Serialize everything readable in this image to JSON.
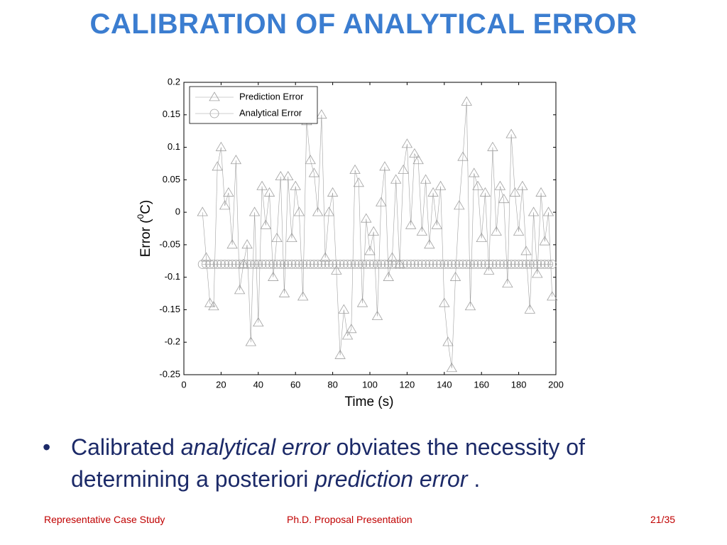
{
  "title": "CALIBRATION OF ANALYTICAL ERROR",
  "bullet": [
    "Calibrated",
    "analytical error",
    "obviates the necessity of determining a posteriori",
    "prediction error",
    "."
  ],
  "footer": {
    "left": "Representative Case Study",
    "center": "Ph.D. Proposal Presentation",
    "right": "21/35"
  },
  "chart_data": {
    "type": "line",
    "xlabel": "Time (s)",
    "ylabel": [
      "Error (",
      "0",
      "C)"
    ],
    "xlim": [
      0,
      200
    ],
    "xticks": [
      0,
      20,
      40,
      60,
      80,
      100,
      120,
      140,
      160,
      180,
      200
    ],
    "ylim": [
      -0.25,
      0.2
    ],
    "yticks": [
      0.2,
      0.15,
      0.1,
      0.05,
      0,
      -0.05,
      -0.1,
      -0.15,
      -0.2,
      -0.25
    ],
    "legend": "upper left",
    "x": [
      10,
      12,
      14,
      16,
      18,
      20,
      22,
      24,
      26,
      28,
      30,
      32,
      34,
      36,
      38,
      40,
      42,
      44,
      46,
      48,
      50,
      52,
      54,
      56,
      58,
      60,
      62,
      64,
      66,
      68,
      70,
      72,
      74,
      76,
      78,
      80,
      82,
      84,
      86,
      88,
      90,
      92,
      94,
      96,
      98,
      100,
      102,
      104,
      106,
      108,
      110,
      112,
      114,
      116,
      118,
      120,
      122,
      124,
      126,
      128,
      130,
      132,
      134,
      136,
      138,
      140,
      142,
      144,
      146,
      148,
      150,
      152,
      154,
      156,
      158,
      160,
      162,
      164,
      166,
      168,
      170,
      172,
      174,
      176,
      178,
      180,
      182,
      184,
      186,
      188,
      190,
      192,
      194,
      196,
      198
    ],
    "series": [
      {
        "name": "Prediction Error",
        "color": "#a0a0a0",
        "marker": "triangle",
        "values": [
          0,
          -0.07,
          -0.14,
          -0.145,
          0.07,
          0.1,
          0.01,
          0.03,
          -0.05,
          0.08,
          -0.12,
          -0.08,
          -0.05,
          -0.2,
          0,
          -0.17,
          0.04,
          -0.02,
          0.03,
          -0.1,
          -0.04,
          0.055,
          -0.125,
          0.055,
          -0.04,
          0.04,
          0,
          -0.13,
          0.14,
          0.08,
          0.06,
          0,
          0.15,
          -0.07,
          0,
          0.03,
          -0.09,
          -0.22,
          -0.15,
          -0.19,
          -0.18,
          0.065,
          0.045,
          -0.14,
          -0.01,
          -0.06,
          -0.03,
          -0.16,
          0.015,
          0.07,
          -0.1,
          -0.07,
          0.05,
          -0.08,
          0.065,
          0.105,
          -0.02,
          0.09,
          0.08,
          -0.03,
          0.05,
          -0.05,
          0.03,
          -0.02,
          0.04,
          -0.14,
          -0.2,
          -0.24,
          -0.1,
          0.01,
          0.085,
          0.17,
          -0.145,
          0.06,
          0.04,
          -0.04,
          0.03,
          -0.09,
          0.1,
          -0.03,
          0.04,
          0.02,
          -0.11,
          0.12,
          0.03,
          -0.03,
          0.04,
          -0.06,
          -0.15,
          0,
          -0.095,
          0.03,
          -0.045,
          0,
          -0.13
        ]
      },
      {
        "name": "Analytical Error",
        "color": "#a0a0a0",
        "marker": "circle",
        "values": [
          -0.08,
          -0.08,
          -0.08,
          -0.08,
          -0.08,
          -0.08,
          -0.08,
          -0.08,
          -0.08,
          -0.08,
          -0.08,
          -0.08,
          -0.08,
          -0.08,
          -0.08,
          -0.08,
          -0.08,
          -0.08,
          -0.08,
          -0.08,
          -0.08,
          -0.08,
          -0.08,
          -0.08,
          -0.08,
          -0.08,
          -0.08,
          -0.08,
          -0.08,
          -0.08,
          -0.08,
          -0.08,
          -0.08,
          -0.08,
          -0.08,
          -0.08,
          -0.08,
          -0.08,
          -0.08,
          -0.08,
          -0.08,
          -0.08,
          -0.08,
          -0.08,
          -0.08,
          -0.08,
          -0.08,
          -0.08,
          -0.08,
          -0.08,
          -0.08,
          -0.08,
          -0.08,
          -0.08,
          -0.08,
          -0.08,
          -0.08,
          -0.08,
          -0.08,
          -0.08,
          -0.08,
          -0.08,
          -0.08,
          -0.08,
          -0.08,
          -0.08,
          -0.08,
          -0.08,
          -0.08,
          -0.08,
          -0.08,
          -0.08,
          -0.08,
          -0.08,
          -0.08,
          -0.08,
          -0.08,
          -0.08,
          -0.08,
          -0.08,
          -0.08,
          -0.08,
          -0.08,
          -0.08,
          -0.08,
          -0.08,
          -0.08,
          -0.08,
          -0.08,
          -0.08,
          -0.08,
          -0.08,
          -0.08,
          -0.08,
          -0.08
        ]
      }
    ]
  }
}
